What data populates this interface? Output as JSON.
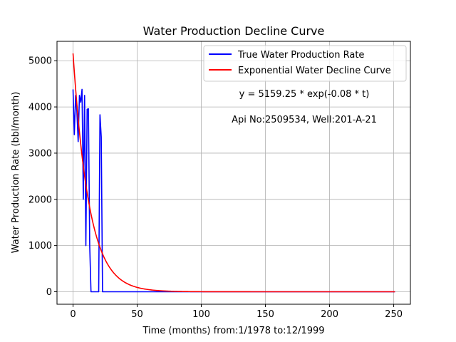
{
  "chart_data": {
    "type": "line",
    "title": "Water Production Decline Curve",
    "xlabel": "Time (months) from:1/1978 to:12/1999",
    "ylabel": "Water Production Rate (bbl/month)",
    "xlim": [
      -12.5,
      263
    ],
    "ylim": [
      -270,
      5420
    ],
    "x_ticks": [
      0,
      50,
      100,
      150,
      200,
      250
    ],
    "y_ticks": [
      0,
      1000,
      2000,
      3000,
      4000,
      5000
    ],
    "grid": true,
    "legend_position": "top-right",
    "annotations": [
      "y = 5159.25 * exp(-0.08 * t)",
      "Api No:2509534, Well:201-A-21"
    ],
    "series": [
      {
        "name": "True Water Production Rate",
        "color": "#0000ff",
        "x": [
          0,
          1,
          2,
          3,
          4,
          5,
          6,
          7,
          8,
          9,
          10,
          11,
          12,
          13,
          14,
          15,
          16,
          17,
          18,
          19,
          20,
          21,
          22,
          23,
          24,
          251
        ],
        "y": [
          4380,
          3400,
          4250,
          3900,
          3250,
          4250,
          4100,
          4380,
          2000,
          4250,
          1000,
          3950,
          3960,
          1000,
          0,
          0,
          0,
          0,
          0,
          0,
          0,
          3830,
          3350,
          0,
          0,
          0
        ]
      },
      {
        "name": "Exponential Water Decline Curve",
        "color": "#ff0000",
        "model": {
          "a": 5159.25,
          "b": 0.08
        },
        "x_range": [
          0,
          251
        ]
      }
    ]
  }
}
